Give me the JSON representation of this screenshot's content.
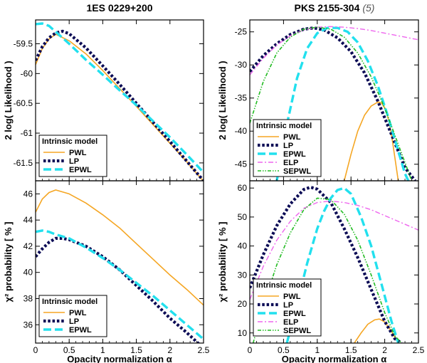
{
  "colors": {
    "PWL": "#f5a623",
    "LP": "#0b0b55",
    "EPWL": "#22e0ee",
    "ELP": "#ee66ee",
    "SEPWL": "#22bb22"
  },
  "titles": {
    "left": "1ES 0229+200",
    "right": "PKS 2155-304",
    "right_note": "(5)"
  },
  "chart_data": [
    {
      "id": "p1",
      "type": "line",
      "title": "1ES 0229+200",
      "ylabel": "2 log( Likelihood )",
      "xlabel": "",
      "xlim": [
        0,
        2.5
      ],
      "ylim": [
        -61.8,
        -59.1
      ],
      "xticks": [
        0,
        0.5,
        1,
        1.5,
        2,
        2.5
      ],
      "show_x_tick_labels": false,
      "yticks": [
        -61.5,
        -61,
        -60.5,
        -60,
        -59.5
      ],
      "ytick_labels": [
        "-61.5",
        "-61",
        "-60.5",
        "-60",
        "-59.5"
      ],
      "legend": {
        "title": "Intrinsic model",
        "position": "bottom-left",
        "entries": [
          "PWL",
          "LP",
          "EPWL"
        ]
      },
      "series": [
        {
          "name": "PWL",
          "x": [
            0,
            0.1,
            0.2,
            0.3,
            0.5,
            0.75,
            1.0,
            1.25,
            1.5,
            1.75,
            2.0,
            2.25,
            2.5
          ],
          "y": [
            -59.85,
            -59.58,
            -59.42,
            -59.34,
            -59.45,
            -59.67,
            -59.95,
            -60.25,
            -60.55,
            -60.86,
            -61.17,
            -61.48,
            -61.81
          ]
        },
        {
          "name": "LP",
          "x": [
            0,
            0.1,
            0.2,
            0.3,
            0.4,
            0.5,
            0.75,
            1.0,
            1.25,
            1.5,
            1.75,
            2.0,
            2.25,
            2.5
          ],
          "y": [
            -59.78,
            -59.55,
            -59.4,
            -59.32,
            -59.29,
            -59.33,
            -59.57,
            -59.87,
            -60.18,
            -60.5,
            -60.82,
            -61.14,
            -61.47,
            -61.8
          ]
        },
        {
          "name": "EPWL",
          "x": [
            0,
            0.1,
            0.2,
            0.3,
            0.5,
            0.75,
            1.0,
            1.25,
            1.5,
            1.75,
            2.0,
            2.25,
            2.5
          ],
          "y": [
            -59.17,
            -59.16,
            -59.2,
            -59.3,
            -59.5,
            -59.77,
            -60.02,
            -60.28,
            -60.53,
            -60.8,
            -61.07,
            -61.36,
            -61.66
          ]
        }
      ]
    },
    {
      "id": "p2",
      "type": "line",
      "title": "PKS 2155-304 (5)",
      "ylabel": "2 log( Likelihood )",
      "xlabel": "",
      "xlim": [
        0,
        2.5
      ],
      "ylim": [
        -47.5,
        -23.2
      ],
      "xticks": [
        0,
        0.5,
        1,
        1.5,
        2,
        2.5
      ],
      "show_x_tick_labels": false,
      "yticks": [
        -45,
        -40,
        -35,
        -30,
        -25
      ],
      "ytick_labels": [
        "-45",
        "-40",
        "-35",
        "-30",
        "-25"
      ],
      "legend": {
        "title": "Intrinsic model",
        "position": "bottom-left",
        "entries": [
          "PWL",
          "LP",
          "EPWL",
          "ELP",
          "SEPWL"
        ]
      },
      "series": [
        {
          "name": "PWL",
          "x": [
            1.4,
            1.5,
            1.6,
            1.7,
            1.8,
            1.9,
            1.95,
            2.0,
            2.05,
            2.1,
            2.2
          ],
          "y": [
            -47.5,
            -43.5,
            -40.0,
            -37.6,
            -36.2,
            -35.6,
            -35.75,
            -36.5,
            -38.0,
            -40.5,
            -47.5
          ]
        },
        {
          "name": "LP",
          "x": [
            0,
            0.2,
            0.4,
            0.6,
            0.8,
            0.95,
            1.1,
            1.3,
            1.5,
            1.7,
            1.9,
            2.1,
            2.3,
            2.45
          ],
          "y": [
            -31.0,
            -28.6,
            -26.8,
            -25.4,
            -24.6,
            -24.4,
            -24.7,
            -25.9,
            -28.0,
            -31.2,
            -35.5,
            -40.5,
            -45.5,
            -47.5
          ]
        },
        {
          "name": "EPWL",
          "x": [
            0.4,
            0.55,
            0.7,
            0.85,
            1.0,
            1.15,
            1.3,
            1.45,
            1.6,
            1.75,
            1.9,
            2.05,
            2.2,
            2.3,
            2.35
          ],
          "y": [
            -47.5,
            -39.0,
            -32.0,
            -27.5,
            -25.2,
            -24.4,
            -24.4,
            -25.0,
            -26.6,
            -29.4,
            -33.2,
            -37.8,
            -43.0,
            -46.4,
            -47.5
          ]
        },
        {
          "name": "ELP",
          "x": [
            0,
            0.2,
            0.4,
            0.6,
            0.8,
            1.0,
            1.2,
            1.4,
            1.6,
            1.8,
            2.0,
            2.2,
            2.5
          ],
          "y": [
            -31.5,
            -29.0,
            -27.0,
            -25.6,
            -24.7,
            -24.3,
            -24.2,
            -24.3,
            -24.5,
            -24.8,
            -25.2,
            -25.6,
            -26.2
          ]
        },
        {
          "name": "SEPWL",
          "x": [
            0,
            0.2,
            0.4,
            0.6,
            0.8,
            1.0,
            1.2,
            1.4,
            1.6,
            1.8,
            2.0,
            2.2,
            2.4
          ],
          "y": [
            -38.8,
            -32.5,
            -28.2,
            -25.8,
            -24.6,
            -24.3,
            -24.6,
            -25.8,
            -28.2,
            -31.8,
            -36.5,
            -42.0,
            -47.5
          ]
        }
      ]
    },
    {
      "id": "p3",
      "type": "line",
      "title": "",
      "ylabel": "χ² probability [ % ]",
      "xlabel": "Opacity normalization α",
      "xlim": [
        0,
        2.5
      ],
      "ylim": [
        34.6,
        47.0
      ],
      "xticks": [
        0,
        0.5,
        1,
        1.5,
        2,
        2.5
      ],
      "xtick_labels": [
        "0",
        "0.5",
        "1",
        "1.5",
        "2",
        "2.5"
      ],
      "show_x_tick_labels": true,
      "yticks": [
        36,
        38,
        40,
        42,
        44,
        46
      ],
      "ytick_labels": [
        "36",
        "38",
        "40",
        "42",
        "44",
        "46"
      ],
      "legend": {
        "title": "Intrinsic model",
        "position": "bottom-left",
        "entries": [
          "PWL",
          "LP",
          "EPWL"
        ]
      },
      "series": [
        {
          "name": "PWL",
          "x": [
            0,
            0.1,
            0.2,
            0.3,
            0.5,
            0.75,
            1.0,
            1.25,
            1.5,
            1.75,
            2.0,
            2.25,
            2.5
          ],
          "y": [
            44.6,
            45.6,
            46.1,
            46.3,
            46.0,
            45.3,
            44.4,
            43.4,
            42.2,
            41.0,
            39.8,
            38.7,
            37.5
          ]
        },
        {
          "name": "LP",
          "x": [
            0,
            0.1,
            0.2,
            0.3,
            0.4,
            0.5,
            0.75,
            1.0,
            1.25,
            1.5,
            1.75,
            2.0,
            2.25,
            2.5
          ],
          "y": [
            41.2,
            41.8,
            42.3,
            42.6,
            42.6,
            42.5,
            42.0,
            41.2,
            40.2,
            39.0,
            37.8,
            36.5,
            35.4,
            34.2
          ]
        },
        {
          "name": "EPWL",
          "x": [
            0,
            0.1,
            0.2,
            0.3,
            0.5,
            0.75,
            1.0,
            1.25,
            1.5,
            1.75,
            2.0,
            2.25,
            2.5
          ],
          "y": [
            43.1,
            43.2,
            43.1,
            42.9,
            42.6,
            41.9,
            41.1,
            40.2,
            39.2,
            38.2,
            37.1,
            36.0,
            34.9
          ]
        }
      ]
    },
    {
      "id": "p4",
      "type": "line",
      "title": "",
      "ylabel": "χ² probability [ % ]",
      "xlabel": "Opacity normalization α",
      "xlim": [
        0,
        2.5
      ],
      "ylim": [
        6.5,
        62.5
      ],
      "xticks": [
        0,
        0.5,
        1,
        1.5,
        2,
        2.5
      ],
      "xtick_labels": [
        "0",
        "0.5",
        "1",
        "1.5",
        "2",
        "2.5"
      ],
      "show_x_tick_labels": true,
      "yticks": [
        10,
        20,
        30,
        40,
        50,
        60
      ],
      "ytick_labels": [
        "10",
        "20",
        "30",
        "40",
        "50",
        "60"
      ],
      "legend": {
        "title": "Intrinsic model",
        "position": "bottom-left",
        "entries": [
          "PWL",
          "LP",
          "EPWL",
          "ELP",
          "SEPWL"
        ]
      },
      "series": [
        {
          "name": "PWL",
          "x": [
            1.55,
            1.65,
            1.75,
            1.85,
            1.92,
            2.0,
            2.1,
            2.2
          ],
          "y": [
            6.5,
            10.0,
            13.0,
            14.5,
            14.8,
            13.8,
            10.5,
            6.5
          ]
        },
        {
          "name": "LP",
          "x": [
            0,
            0.2,
            0.4,
            0.6,
            0.8,
            0.9,
            1.0,
            1.2,
            1.4,
            1.6,
            1.8,
            2.0,
            2.15,
            2.25
          ],
          "y": [
            25.5,
            37.0,
            47.0,
            54.5,
            59.5,
            60.3,
            59.6,
            55.0,
            46.0,
            36.0,
            25.0,
            14.0,
            8.0,
            6.5
          ]
        },
        {
          "name": "EPWL",
          "x": [
            0.55,
            0.7,
            0.85,
            1.0,
            1.1,
            1.2,
            1.3,
            1.4,
            1.5,
            1.65,
            1.8,
            1.95,
            2.1,
            2.2
          ],
          "y": [
            6.5,
            20.0,
            34.0,
            46.0,
            52.0,
            56.5,
            59.3,
            60.0,
            58.0,
            50.0,
            40.0,
            27.0,
            14.0,
            6.5
          ]
        },
        {
          "name": "ELP",
          "x": [
            0,
            0.2,
            0.4,
            0.6,
            0.8,
            1.0,
            1.2,
            1.4,
            1.6,
            1.8,
            2.0,
            2.2,
            2.5
          ],
          "y": [
            21.5,
            33.0,
            42.0,
            48.5,
            53.0,
            55.0,
            55.5,
            55.0,
            54.0,
            52.5,
            50.5,
            48.5,
            45.5
          ]
        },
        {
          "name": "SEPWL",
          "x": [
            0.05,
            0.2,
            0.4,
            0.6,
            0.8,
            1.0,
            1.2,
            1.4,
            1.6,
            1.8,
            2.0,
            2.15,
            2.25
          ],
          "y": [
            6.5,
            19.5,
            33.5,
            44.5,
            52.5,
            56.5,
            56.0,
            51.0,
            42.0,
            30.0,
            17.0,
            9.0,
            6.5
          ]
        }
      ]
    }
  ]
}
